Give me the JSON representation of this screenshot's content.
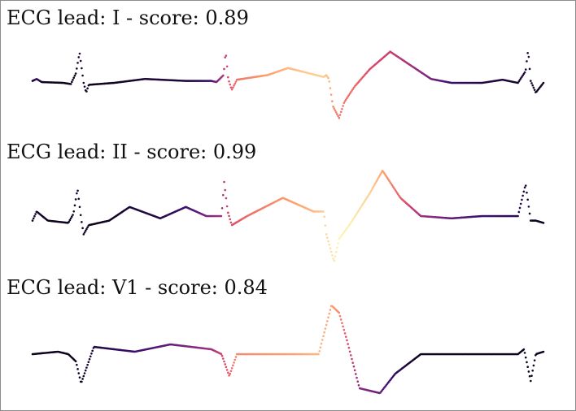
{
  "chart_data": [
    {
      "type": "scatter",
      "title": "ECG lead: I  - score: 0.89",
      "xlabel": "",
      "ylabel": "",
      "grid": false,
      "axes_visible": false,
      "colormap": "magma",
      "colors": [
        "#000004",
        "#3b0f70",
        "#8c2981",
        "#de4968",
        "#fe9f6d",
        "#fcfdbf"
      ],
      "knots": [
        {
          "x": 0.0,
          "y": 0.05,
          "c": 0.05
        },
        {
          "x": 0.008,
          "y": 0.1,
          "c": 0.2
        },
        {
          "x": 0.018,
          "y": 0.02,
          "c": 0.05
        },
        {
          "x": 0.06,
          "y": 0.0,
          "c": 0.05
        },
        {
          "x": 0.075,
          "y": -0.03,
          "c": 0.05
        },
        {
          "x": 0.085,
          "y": 0.25,
          "c": 0.05
        },
        {
          "x": 0.092,
          "y": 0.78,
          "c": 0.1
        },
        {
          "x": 0.1,
          "y": 0.0,
          "c": 0.08
        },
        {
          "x": 0.105,
          "y": -0.25,
          "c": 0.08
        },
        {
          "x": 0.11,
          "y": -0.05,
          "c": 0.06
        },
        {
          "x": 0.16,
          "y": 0.0,
          "c": 0.05
        },
        {
          "x": 0.22,
          "y": 0.1,
          "c": 0.1
        },
        {
          "x": 0.3,
          "y": 0.05,
          "c": 0.1
        },
        {
          "x": 0.35,
          "y": 0.05,
          "c": 0.2
        },
        {
          "x": 0.36,
          "y": 0.02,
          "c": 0.35
        },
        {
          "x": 0.374,
          "y": 0.2,
          "c": 0.5
        },
        {
          "x": 0.378,
          "y": 0.82,
          "c": 0.55
        },
        {
          "x": 0.383,
          "y": 0.1,
          "c": 0.6
        },
        {
          "x": 0.39,
          "y": -0.18,
          "c": 0.65
        },
        {
          "x": 0.4,
          "y": 0.08,
          "c": 0.7
        },
        {
          "x": 0.46,
          "y": 0.2,
          "c": 0.8
        },
        {
          "x": 0.5,
          "y": 0.38,
          "c": 0.85
        },
        {
          "x": 0.54,
          "y": 0.25,
          "c": 0.9
        },
        {
          "x": 0.57,
          "y": 0.15,
          "c": 0.9
        },
        {
          "x": 0.575,
          "y": 0.2,
          "c": 0.88
        },
        {
          "x": 0.58,
          "y": 0.1,
          "c": 0.85
        },
        {
          "x": 0.588,
          "y": -0.6,
          "c": 0.75
        },
        {
          "x": 0.6,
          "y": -0.9,
          "c": 0.7
        },
        {
          "x": 0.61,
          "y": -0.5,
          "c": 0.7
        },
        {
          "x": 0.63,
          "y": -0.1,
          "c": 0.68
        },
        {
          "x": 0.66,
          "y": 0.35,
          "c": 0.6
        },
        {
          "x": 0.7,
          "y": 0.8,
          "c": 0.55
        },
        {
          "x": 0.74,
          "y": 0.45,
          "c": 0.45
        },
        {
          "x": 0.78,
          "y": 0.1,
          "c": 0.35
        },
        {
          "x": 0.82,
          "y": 0.0,
          "c": 0.2
        },
        {
          "x": 0.88,
          "y": 0.0,
          "c": 0.12
        },
        {
          "x": 0.92,
          "y": 0.08,
          "c": 0.1
        },
        {
          "x": 0.95,
          "y": 0.0,
          "c": 0.08
        },
        {
          "x": 0.965,
          "y": 0.3,
          "c": 0.1
        },
        {
          "x": 0.97,
          "y": 0.85,
          "c": 0.1
        },
        {
          "x": 0.975,
          "y": 0.05,
          "c": 0.08
        },
        {
          "x": 0.985,
          "y": -0.25,
          "c": 0.05
        },
        {
          "x": 1.0,
          "y": 0.0,
          "c": 0.05
        }
      ]
    },
    {
      "type": "scatter",
      "title": "ECG lead: II - score: 0.99",
      "xlabel": "",
      "ylabel": "",
      "grid": false,
      "axes_visible": false,
      "colormap": "magma",
      "colors": [
        "#000004",
        "#3b0f70",
        "#8c2981",
        "#de4968",
        "#fe9f6d",
        "#fcfdbf"
      ],
      "knots": [
        {
          "x": 0.0,
          "y": -0.1,
          "c": 0.05
        },
        {
          "x": 0.008,
          "y": 0.1,
          "c": 0.08
        },
        {
          "x": 0.03,
          "y": -0.1,
          "c": 0.05
        },
        {
          "x": 0.07,
          "y": -0.15,
          "c": 0.05
        },
        {
          "x": 0.08,
          "y": 0.05,
          "c": 0.05
        },
        {
          "x": 0.088,
          "y": 0.6,
          "c": 0.08
        },
        {
          "x": 0.095,
          "y": -0.05,
          "c": 0.08
        },
        {
          "x": 0.1,
          "y": -0.4,
          "c": 0.06
        },
        {
          "x": 0.11,
          "y": -0.2,
          "c": 0.05
        },
        {
          "x": 0.15,
          "y": -0.1,
          "c": 0.05
        },
        {
          "x": 0.19,
          "y": 0.2,
          "c": 0.1
        },
        {
          "x": 0.25,
          "y": -0.05,
          "c": 0.12
        },
        {
          "x": 0.3,
          "y": 0.2,
          "c": 0.2
        },
        {
          "x": 0.34,
          "y": 0.0,
          "c": 0.35
        },
        {
          "x": 0.37,
          "y": 0.0,
          "c": 0.45
        },
        {
          "x": 0.375,
          "y": 0.75,
          "c": 0.5
        },
        {
          "x": 0.382,
          "y": 0.1,
          "c": 0.55
        },
        {
          "x": 0.39,
          "y": -0.2,
          "c": 0.6
        },
        {
          "x": 0.42,
          "y": 0.0,
          "c": 0.68
        },
        {
          "x": 0.49,
          "y": 0.4,
          "c": 0.78
        },
        {
          "x": 0.55,
          "y": 0.1,
          "c": 0.85
        },
        {
          "x": 0.57,
          "y": 0.1,
          "c": 0.9
        },
        {
          "x": 0.575,
          "y": -0.4,
          "c": 0.92
        },
        {
          "x": 0.59,
          "y": -1.0,
          "c": 0.95
        },
        {
          "x": 0.6,
          "y": -0.5,
          "c": 0.98
        },
        {
          "x": 0.62,
          "y": -0.2,
          "c": 0.97
        },
        {
          "x": 0.66,
          "y": 0.5,
          "c": 0.9
        },
        {
          "x": 0.685,
          "y": 1.0,
          "c": 0.8
        },
        {
          "x": 0.72,
          "y": 0.4,
          "c": 0.65
        },
        {
          "x": 0.76,
          "y": 0.0,
          "c": 0.45
        },
        {
          "x": 0.82,
          "y": -0.05,
          "c": 0.3
        },
        {
          "x": 0.88,
          "y": 0.0,
          "c": 0.2
        },
        {
          "x": 0.95,
          "y": 0.0,
          "c": 0.15
        },
        {
          "x": 0.965,
          "y": 0.7,
          "c": 0.1
        },
        {
          "x": 0.975,
          "y": -0.1,
          "c": 0.08
        },
        {
          "x": 0.985,
          "y": -0.1,
          "c": 0.05
        },
        {
          "x": 1.0,
          "y": -0.15,
          "c": 0.05
        }
      ]
    },
    {
      "type": "scatter",
      "title": "ECG lead: V1 - score: 0.84",
      "xlabel": "",
      "ylabel": "",
      "grid": false,
      "axes_visible": false,
      "colormap": "magma",
      "colors": [
        "#000004",
        "#3b0f70",
        "#8c2981",
        "#de4968",
        "#fe9f6d",
        "#fcfdbf"
      ],
      "knots": [
        {
          "x": 0.0,
          "y": 0.0,
          "c": 0.05
        },
        {
          "x": 0.05,
          "y": 0.05,
          "c": 0.05
        },
        {
          "x": 0.07,
          "y": 0.0,
          "c": 0.05
        },
        {
          "x": 0.085,
          "y": -0.15,
          "c": 0.05
        },
        {
          "x": 0.095,
          "y": -0.6,
          "c": 0.05
        },
        {
          "x": 0.12,
          "y": 0.15,
          "c": 0.1
        },
        {
          "x": 0.2,
          "y": 0.05,
          "c": 0.2
        },
        {
          "x": 0.27,
          "y": 0.2,
          "c": 0.3
        },
        {
          "x": 0.35,
          "y": 0.1,
          "c": 0.45
        },
        {
          "x": 0.37,
          "y": 0.0,
          "c": 0.55
        },
        {
          "x": 0.385,
          "y": -0.45,
          "c": 0.65
        },
        {
          "x": 0.4,
          "y": 0.0,
          "c": 0.75
        },
        {
          "x": 0.5,
          "y": 0.0,
          "c": 0.8
        },
        {
          "x": 0.56,
          "y": 0.0,
          "c": 0.85
        },
        {
          "x": 0.585,
          "y": 1.0,
          "c": 0.8
        },
        {
          "x": 0.6,
          "y": 0.85,
          "c": 0.75
        },
        {
          "x": 0.615,
          "y": 0.3,
          "c": 0.6
        },
        {
          "x": 0.64,
          "y": -0.7,
          "c": 0.4
        },
        {
          "x": 0.68,
          "y": -0.8,
          "c": 0.3
        },
        {
          "x": 0.71,
          "y": -0.4,
          "c": 0.15
        },
        {
          "x": 0.76,
          "y": 0.0,
          "c": 0.05
        },
        {
          "x": 0.9,
          "y": 0.0,
          "c": 0.05
        },
        {
          "x": 0.95,
          "y": 0.0,
          "c": 0.05
        },
        {
          "x": 0.962,
          "y": 0.1,
          "c": 0.05
        },
        {
          "x": 0.975,
          "y": -0.55,
          "c": 0.05
        },
        {
          "x": 0.985,
          "y": 0.0,
          "c": 0.05
        },
        {
          "x": 1.0,
          "y": 0.05,
          "c": 0.05
        }
      ]
    }
  ]
}
